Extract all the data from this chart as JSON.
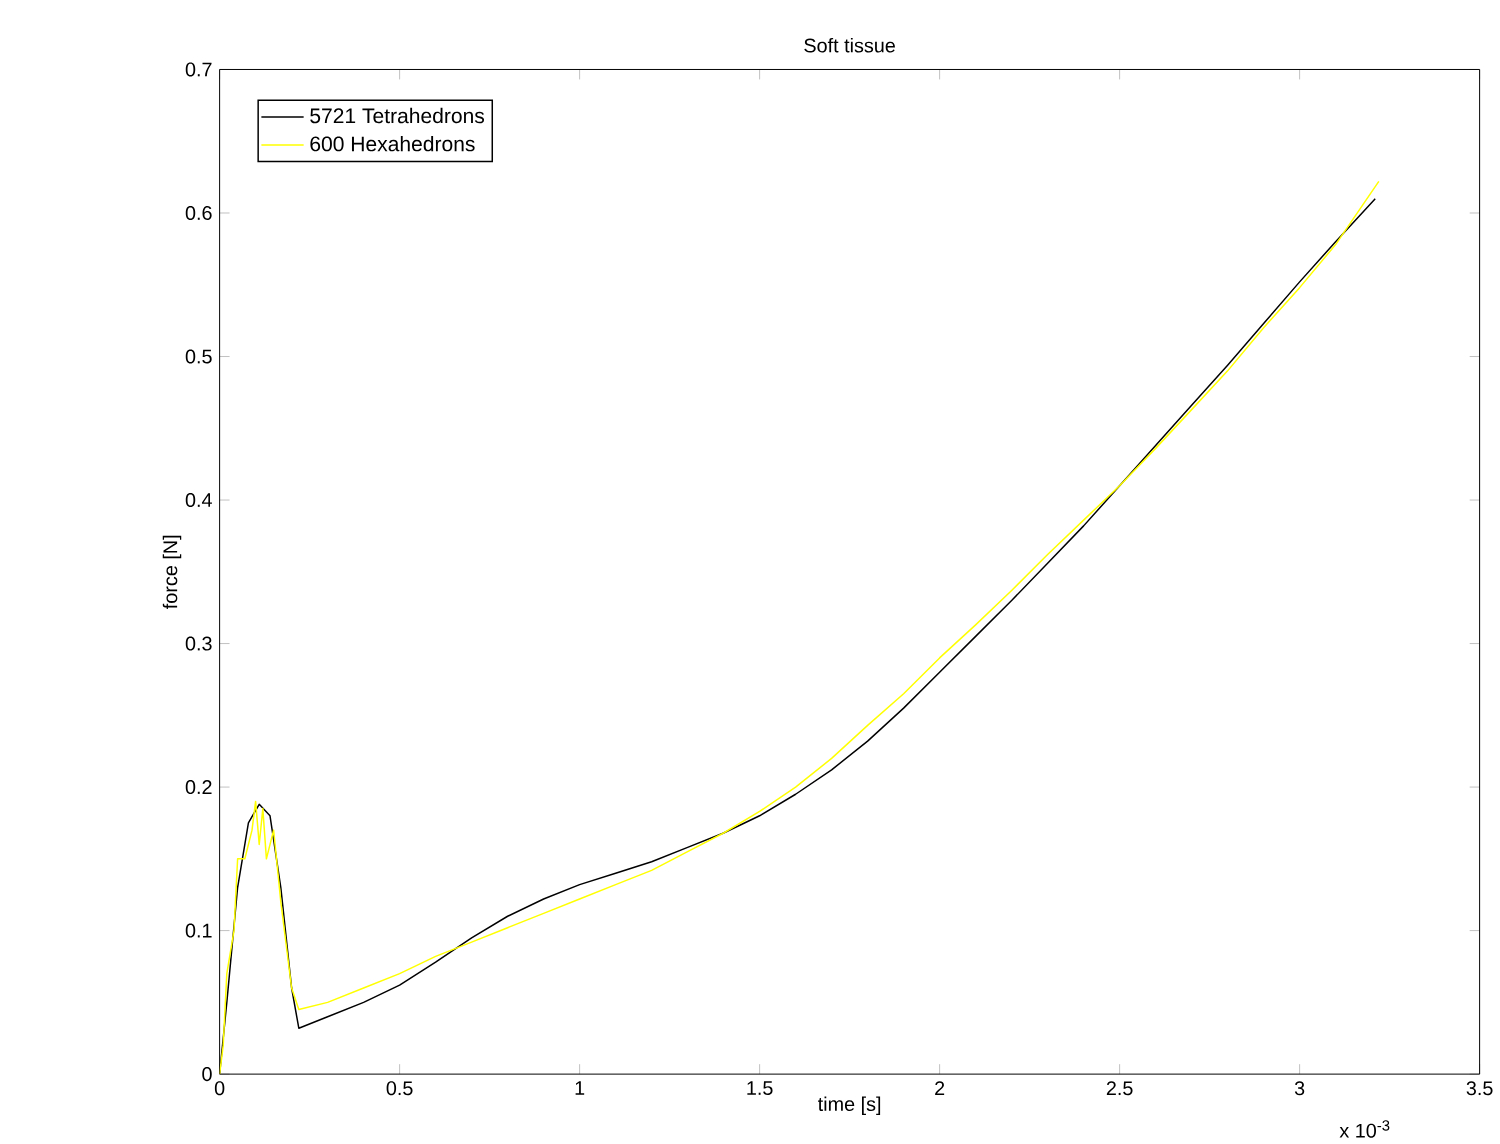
{
  "chart_data": {
    "type": "line",
    "title": "Soft tissue",
    "xlabel": "time [s]",
    "ylabel": "force [N]",
    "annotations": [
      "x 10$^{-3}$"
    ],
    "xlim": [
      0,
      3.5
    ],
    "ylim": [
      0,
      0.7
    ],
    "xticks": [
      0,
      0.5,
      1,
      1.5,
      2,
      2.5,
      3,
      3.5
    ],
    "yticks": [
      0,
      0.1,
      0.2,
      0.3,
      0.4,
      0.5,
      0.6,
      0.7
    ],
    "grid": false,
    "legend": "top left",
    "marker": "none",
    "line_style": "solid",
    "series": [
      {
        "name": "5721 Tetrahedrons",
        "color": "#000000",
        "x": [
          0,
          0.02,
          0.05,
          0.08,
          0.11,
          0.14,
          0.17,
          0.2,
          0.22,
          0.3,
          0.4,
          0.5,
          0.6,
          0.7,
          0.8,
          0.9,
          1.0,
          1.1,
          1.2,
          1.3,
          1.4,
          1.5,
          1.6,
          1.7,
          1.8,
          1.9,
          2.0,
          2.1,
          2.2,
          2.3,
          2.4,
          2.5,
          2.6,
          2.7,
          2.8,
          2.9,
          3.0,
          3.1,
          3.21
        ],
        "values": [
          0,
          0.05,
          0.13,
          0.175,
          0.188,
          0.18,
          0.13,
          0.06,
          0.032,
          0.04,
          0.05,
          0.062,
          0.078,
          0.095,
          0.11,
          0.122,
          0.132,
          0.14,
          0.148,
          0.158,
          0.168,
          0.18,
          0.195,
          0.212,
          0.232,
          0.255,
          0.28,
          0.305,
          0.33,
          0.356,
          0.382,
          0.41,
          0.438,
          0.466,
          0.494,
          0.523,
          0.552,
          0.58,
          0.61
        ]
      },
      {
        "name": "600 Hexahedrons",
        "color": "#ffff00",
        "x": [
          0,
          0.01,
          0.02,
          0.04,
          0.05,
          0.07,
          0.09,
          0.1,
          0.11,
          0.12,
          0.13,
          0.15,
          0.17,
          0.2,
          0.22,
          0.3,
          0.4,
          0.5,
          0.6,
          0.7,
          0.8,
          0.9,
          1.0,
          1.1,
          1.2,
          1.3,
          1.4,
          1.5,
          1.6,
          1.7,
          1.8,
          1.9,
          2.0,
          2.1,
          2.2,
          2.3,
          2.4,
          2.5,
          2.6,
          2.7,
          2.8,
          2.9,
          3.0,
          3.1,
          3.22
        ],
        "values": [
          0,
          0.02,
          0.07,
          0.1,
          0.15,
          0.15,
          0.17,
          0.19,
          0.16,
          0.185,
          0.15,
          0.17,
          0.12,
          0.06,
          0.045,
          0.05,
          0.06,
          0.07,
          0.082,
          0.092,
          0.102,
          0.112,
          0.122,
          0.132,
          0.142,
          0.155,
          0.168,
          0.183,
          0.2,
          0.22,
          0.243,
          0.265,
          0.29,
          0.313,
          0.337,
          0.362,
          0.386,
          0.41,
          0.436,
          0.463,
          0.49,
          0.52,
          0.548,
          0.578,
          0.622
        ]
      }
    ]
  }
}
